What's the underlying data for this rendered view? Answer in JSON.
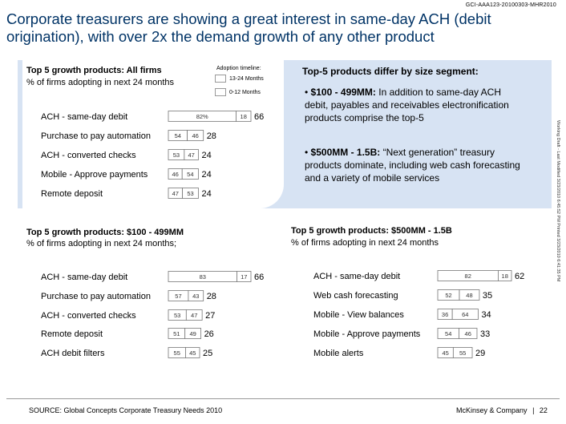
{
  "doc_id": "GCI-AAA123-20100303-MHR2010",
  "headline": "Corporate treasurers are showing a great interest in same-day ACH (debit origination), with over 2x the demand growth of any other product",
  "legend": {
    "title": "Adoption timeline:",
    "items": [
      {
        "label": "13-24 Months",
        "color": "#ffffff"
      },
      {
        "label": "0-12 Months",
        "color": "#ffffff"
      }
    ]
  },
  "side_note": "Working Draft - Last Modified 3/23/2010 6:45:52 PM     Printed 3/23/2010 6:41:35 PM",
  "segments": {
    "title": "Top-5 products differ by size segment:",
    "bullets": [
      {
        "label": "$100 - 499MM:",
        "text": " In addition to same-day ACH debit, payables and receivables electronification products comprise the top-5"
      },
      {
        "label": "$500MM - 1.5B:",
        "text": " “Next generation” treasury products dominate, including web cash forecasting and a variety of mobile services"
      }
    ]
  },
  "chart_data": [
    {
      "type": "bar",
      "title": "Top 5 growth products: All firms",
      "subtitle": "% of firms adopting in next 24 months",
      "categories": [
        "ACH - same-day debit",
        "Purchase to pay automation",
        "ACH - converted checks",
        "Mobile - Approve payments",
        "Remote deposit"
      ],
      "series": [
        {
          "values": [
            82,
            54,
            53,
            46,
            47
          ]
        },
        {
          "values": [
            18,
            46,
            47,
            54,
            53
          ]
        }
      ],
      "totals": [
        66,
        28,
        24,
        24,
        24
      ],
      "segment_labels": [
        [
          "82%",
          "18"
        ],
        [
          "54",
          "46"
        ],
        [
          "53",
          "47"
        ],
        [
          "46",
          "54"
        ],
        [
          "47",
          "53"
        ]
      ]
    },
    {
      "type": "bar",
      "title": "Top 5 growth products: $100 - 499MM",
      "subtitle": "% of firms adopting in next 24 months;",
      "categories": [
        "ACH - same-day debit",
        "Purchase to pay automation",
        "ACH - converted checks",
        "Remote deposit",
        "ACH debit filters"
      ],
      "series": [
        {
          "values": [
            83,
            57,
            53,
            51,
            55
          ]
        },
        {
          "values": [
            17,
            43,
            47,
            49,
            45
          ]
        }
      ],
      "totals": [
        66,
        28,
        27,
        26,
        25
      ],
      "segment_labels": [
        [
          "83",
          "17"
        ],
        [
          "57",
          "43"
        ],
        [
          "53",
          "47"
        ],
        [
          "51",
          "49"
        ],
        [
          "55",
          "45"
        ]
      ]
    },
    {
      "type": "bar",
      "title": "Top 5 growth products: $500MM - 1.5B",
      "subtitle": "% of firms adopting in next 24 months",
      "categories": [
        "ACH - same-day debit",
        "Web cash forecasting",
        "Mobile - View balances",
        "Mobile - Approve payments",
        "Mobile alerts"
      ],
      "series": [
        {
          "values": [
            82,
            52,
            36,
            54,
            45
          ]
        },
        {
          "values": [
            18,
            48,
            64,
            46,
            55
          ]
        }
      ],
      "totals": [
        62,
        35,
        34,
        33,
        29
      ],
      "segment_labels": [
        [
          "82",
          "18"
        ],
        [
          "52",
          "48"
        ],
        [
          "36",
          "64"
        ],
        [
          "54",
          "46"
        ],
        [
          "45",
          "55"
        ]
      ]
    }
  ],
  "source": "SOURCE: Global Concepts Corporate Treasury Needs 2010",
  "footer": {
    "brand": "McKinsey & Company",
    "separator": "|",
    "page": "22"
  }
}
